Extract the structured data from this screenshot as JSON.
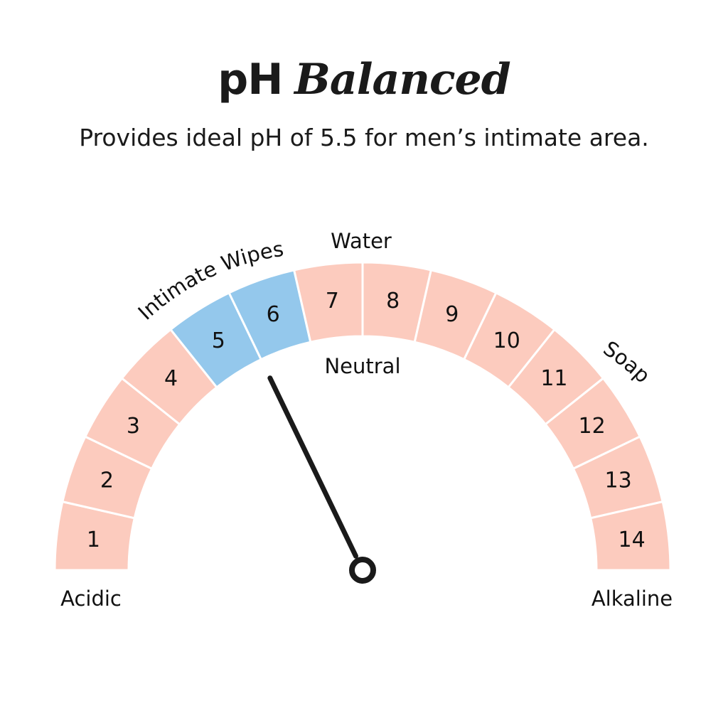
{
  "title": {
    "part1": "pH",
    "part2": "Balanced"
  },
  "subtitle": "Provides ideal pH of 5.5 for men’s intimate area.",
  "gauge": {
    "min": 1,
    "max": 14,
    "segments": [
      {
        "label": "1",
        "highlight": false
      },
      {
        "label": "2",
        "highlight": false
      },
      {
        "label": "3",
        "highlight": false
      },
      {
        "label": "4",
        "highlight": false
      },
      {
        "label": "5",
        "highlight": true
      },
      {
        "label": "6",
        "highlight": true
      },
      {
        "label": "7",
        "highlight": false
      },
      {
        "label": "8",
        "highlight": false
      },
      {
        "label": "9",
        "highlight": false
      },
      {
        "label": "10",
        "highlight": false
      },
      {
        "label": "11",
        "highlight": false
      },
      {
        "label": "12",
        "highlight": false
      },
      {
        "label": "13",
        "highlight": false
      },
      {
        "label": "14",
        "highlight": false
      }
    ],
    "needle_value": 5.5,
    "colors": {
      "normal": "#fccbbe",
      "highlight": "#94c8ec",
      "divider": "#ffffff",
      "needle": "#1a1a1a"
    },
    "labels": {
      "acidic": "Acidic",
      "alkaline": "Alkaline",
      "neutral": "Neutral",
      "water": "Water",
      "intimate_wipes": "Intimate Wipes",
      "soap": "Soap"
    }
  }
}
